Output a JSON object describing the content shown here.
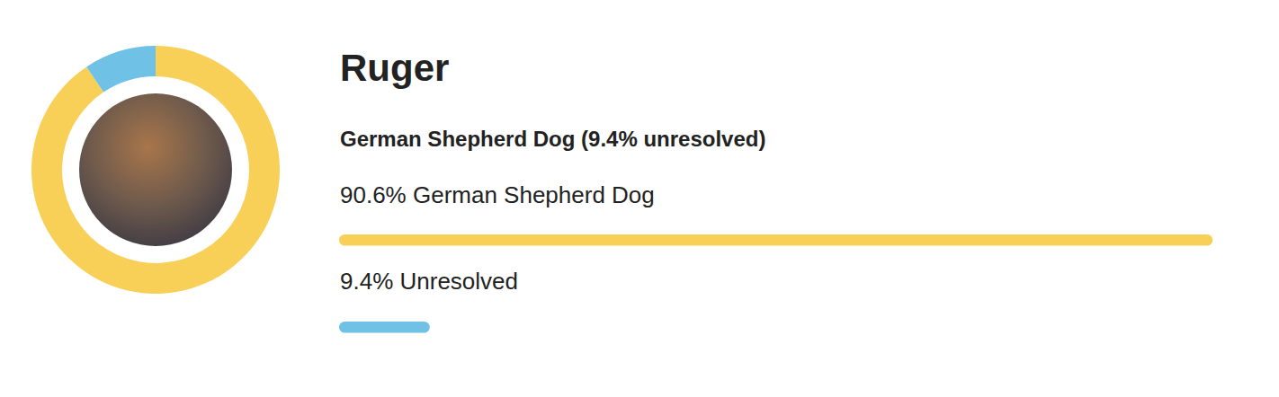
{
  "chart_data": {
    "type": "pie",
    "title": "Ruger",
    "subtitle": "German Shepherd Dog (9.4% unresolved)",
    "categories": [
      "German Shepherd Dog",
      "Unresolved"
    ],
    "values": [
      90.6,
      9.4
    ],
    "value_labels": [
      "90.6% German Shepherd Dog",
      "9.4% Unresolved"
    ],
    "colors": [
      "#f9d057",
      "#70c1e6"
    ],
    "data_labels": true
  }
}
